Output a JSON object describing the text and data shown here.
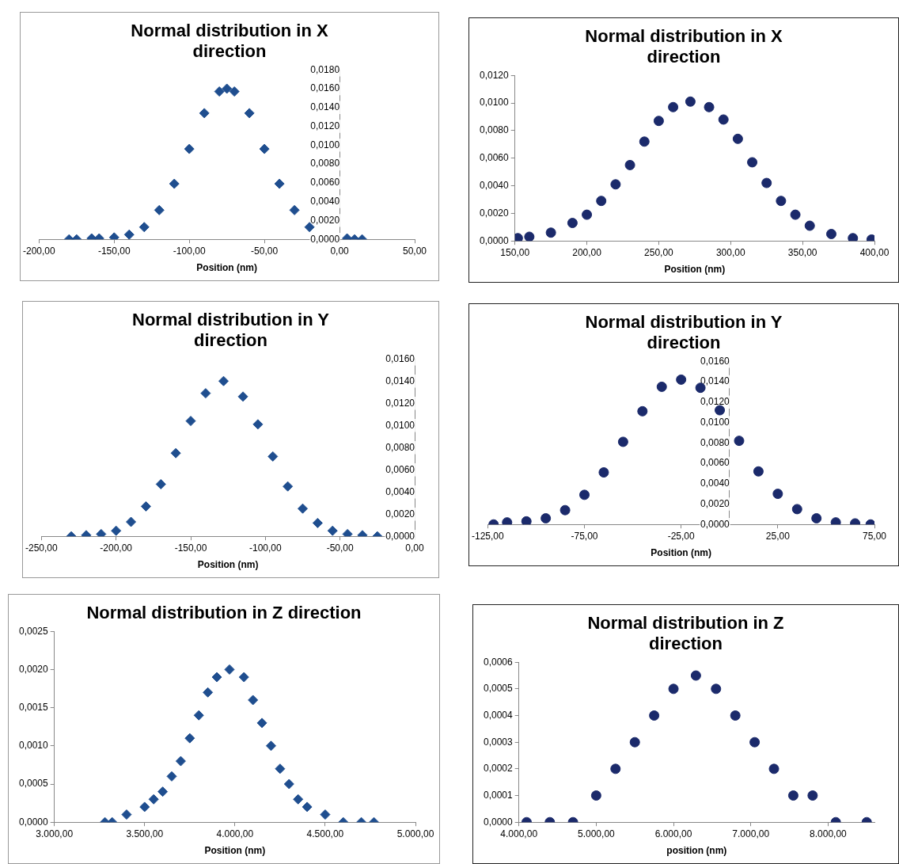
{
  "chart_data": [
    {
      "type": "scatter",
      "title": "Normal distribution in  X direction",
      "xlabel": "Position (nm)",
      "color": "#1f4e8f",
      "marker": "diamond",
      "x": [
        -180,
        -175,
        -165,
        -160,
        -150,
        -140,
        -130,
        -120,
        -110,
        -100,
        -90,
        -80,
        -75,
        -70,
        -60,
        -50,
        -40,
        -30,
        -20,
        5,
        10,
        15
      ],
      "values": [
        0.0,
        0.0,
        0.0001,
        0.0001,
        0.0002,
        0.0005,
        0.0013,
        0.0031,
        0.0059,
        0.0096,
        0.0134,
        0.0157,
        0.016,
        0.0157,
        0.0134,
        0.0096,
        0.0059,
        0.0031,
        0.0013,
        0.0001,
        0.0,
        0.0
      ],
      "xlim": [
        -200,
        50
      ],
      "xticks": [
        {
          "value": -200,
          "label": "-200,00"
        },
        {
          "value": -150,
          "label": "-150,00"
        },
        {
          "value": -100,
          "label": "-100,00"
        },
        {
          "value": -50,
          "label": "-50,00"
        },
        {
          "value": 0,
          "label": "0,00"
        },
        {
          "value": 50,
          "label": "50,00"
        }
      ],
      "ylim": [
        0,
        0.018
      ],
      "yticks": [
        {
          "value": 0,
          "label": "0,0000"
        },
        {
          "value": 0.002,
          "label": "0,0020"
        },
        {
          "value": 0.004,
          "label": "0,0040"
        },
        {
          "value": 0.006,
          "label": "0,0060"
        },
        {
          "value": 0.008,
          "label": "0,0080"
        },
        {
          "value": 0.01,
          "label": "0,0100"
        },
        {
          "value": 0.012,
          "label": "0,0120"
        },
        {
          "value": 0.014,
          "label": "0,0140"
        },
        {
          "value": 0.016,
          "label": "0,0160"
        },
        {
          "value": 0.018,
          "label": "0,0180"
        }
      ]
    },
    {
      "type": "scatter",
      "title": "Normal distribution in X direction",
      "xlabel": "Position (nm)",
      "color": "#1b2a6b",
      "marker": "circle",
      "x": [
        152,
        160,
        175,
        190,
        200,
        210,
        220,
        230,
        240,
        250,
        260,
        272,
        285,
        295,
        305,
        315,
        325,
        335,
        345,
        355,
        370,
        385,
        398
      ],
      "values": [
        0.0002,
        0.0003,
        0.0006,
        0.0013,
        0.0019,
        0.0029,
        0.0041,
        0.0055,
        0.0072,
        0.0087,
        0.0097,
        0.0101,
        0.0097,
        0.0088,
        0.0074,
        0.0057,
        0.0042,
        0.0029,
        0.0019,
        0.0011,
        0.0005,
        0.0002,
        0.0001
      ],
      "xlim": [
        150,
        400
      ],
      "xticks": [
        {
          "value": 150,
          "label": "150,00"
        },
        {
          "value": 200,
          "label": "200,00"
        },
        {
          "value": 250,
          "label": "250,00"
        },
        {
          "value": 300,
          "label": "300,00"
        },
        {
          "value": 350,
          "label": "350,00"
        },
        {
          "value": 400,
          "label": "400,00"
        }
      ],
      "ylim": [
        0,
        0.012
      ],
      "yticks": [
        {
          "value": 0,
          "label": "0,0000"
        },
        {
          "value": 0.002,
          "label": "0,0020"
        },
        {
          "value": 0.004,
          "label": "0,0040"
        },
        {
          "value": 0.006,
          "label": "0,0060"
        },
        {
          "value": 0.008,
          "label": "0,0080"
        },
        {
          "value": 0.01,
          "label": "0,0100"
        },
        {
          "value": 0.012,
          "label": "0,0120"
        }
      ]
    },
    {
      "type": "scatter",
      "title": "Normal distribution in  Y direction",
      "xlabel": "Position (nm)",
      "color": "#1f4e8f",
      "marker": "diamond",
      "x": [
        -230,
        -220,
        -210,
        -200,
        -190,
        -180,
        -170,
        -160,
        -150,
        -140,
        -128,
        -115,
        -105,
        -95,
        -85,
        -75,
        -65,
        -55,
        -45,
        -35,
        -25
      ],
      "values": [
        0.0,
        0.0001,
        0.0002,
        0.0005,
        0.0013,
        0.0027,
        0.0047,
        0.0075,
        0.0104,
        0.0129,
        0.014,
        0.0126,
        0.0101,
        0.0072,
        0.0045,
        0.0025,
        0.0012,
        0.0005,
        0.0002,
        0.0001,
        0.0
      ],
      "xlim": [
        -250,
        0
      ],
      "xticks": [
        {
          "value": -250,
          "label": "-250,00"
        },
        {
          "value": -200,
          "label": "-200,00"
        },
        {
          "value": -150,
          "label": "-150,00"
        },
        {
          "value": -100,
          "label": "-100,00"
        },
        {
          "value": -50,
          "label": "-50,00"
        },
        {
          "value": 0,
          "label": "0,00"
        }
      ],
      "ylim": [
        0,
        0.016
      ],
      "yticks": [
        {
          "value": 0,
          "label": "0,0000"
        },
        {
          "value": 0.002,
          "label": "0,0020"
        },
        {
          "value": 0.004,
          "label": "0,0040"
        },
        {
          "value": 0.006,
          "label": "0,0060"
        },
        {
          "value": 0.008,
          "label": "0,0080"
        },
        {
          "value": 0.01,
          "label": "0,0100"
        },
        {
          "value": 0.012,
          "label": "0,0120"
        },
        {
          "value": 0.014,
          "label": "0,0140"
        },
        {
          "value": 0.016,
          "label": "0,0160"
        }
      ]
    },
    {
      "type": "scatter",
      "title": "Normal distribution in Y direction",
      "xlabel": "Position (nm)",
      "color": "#1b2a6b",
      "marker": "circle",
      "x": [
        -122,
        -115,
        -105,
        -95,
        -85,
        -75,
        -65,
        -55,
        -45,
        -35,
        -25,
        -15,
        -5,
        5,
        15,
        25,
        35,
        45,
        55,
        65,
        73
      ],
      "values": [
        0.0,
        0.0002,
        0.0003,
        0.0006,
        0.0014,
        0.0029,
        0.0051,
        0.0081,
        0.0111,
        0.0135,
        0.0142,
        0.0134,
        0.0112,
        0.0082,
        0.0052,
        0.003,
        0.0015,
        0.0006,
        0.0002,
        0.0001,
        0.0
      ],
      "xlim": [
        -125,
        75
      ],
      "xticks": [
        {
          "value": -125,
          "label": "-125,00"
        },
        {
          "value": -75,
          "label": "-75,00"
        },
        {
          "value": -25,
          "label": "-25,00"
        },
        {
          "value": 25,
          "label": "25,00"
        },
        {
          "value": 75,
          "label": "75,00"
        }
      ],
      "ylim": [
        0,
        0.016
      ],
      "yticks": [
        {
          "value": 0,
          "label": "0,0000"
        },
        {
          "value": 0.002,
          "label": "0,0020"
        },
        {
          "value": 0.004,
          "label": "0,0040"
        },
        {
          "value": 0.006,
          "label": "0,0060"
        },
        {
          "value": 0.008,
          "label": "0,0080"
        },
        {
          "value": 0.01,
          "label": "0,0100"
        },
        {
          "value": 0.012,
          "label": "0,0120"
        },
        {
          "value": 0.014,
          "label": "0,0140"
        },
        {
          "value": 0.016,
          "label": "0,0160"
        }
      ]
    },
    {
      "type": "scatter",
      "title": "Normal distribution in  Z direction",
      "xlabel": "Position (nm)",
      "color": "#1f4e8f",
      "marker": "diamond",
      "x": [
        3280,
        3320,
        3400,
        3500,
        3550,
        3600,
        3650,
        3700,
        3750,
        3800,
        3850,
        3900,
        3970,
        4050,
        4100,
        4150,
        4200,
        4250,
        4300,
        4350,
        4400,
        4500,
        4600,
        4700,
        4770
      ],
      "values": [
        0.0,
        0.0,
        0.0001,
        0.0002,
        0.0003,
        0.0004,
        0.0006,
        0.0008,
        0.0011,
        0.0014,
        0.0017,
        0.0019,
        0.002,
        0.0019,
        0.0016,
        0.0013,
        0.001,
        0.0007,
        0.0005,
        0.0003,
        0.0002,
        0.0001,
        0.0,
        0.0,
        0.0
      ],
      "xlim": [
        3000,
        5000
      ],
      "xticks": [
        {
          "value": 3000,
          "label": "3.000,00"
        },
        {
          "value": 3500,
          "label": "3.500,00"
        },
        {
          "value": 4000,
          "label": "4.000,00"
        },
        {
          "value": 4500,
          "label": "4.500,00"
        },
        {
          "value": 5000,
          "label": "5.000,00"
        }
      ],
      "ylim": [
        0,
        0.0025
      ],
      "yticks": [
        {
          "value": 0,
          "label": "0,0000"
        },
        {
          "value": 0.0005,
          "label": "0,0005"
        },
        {
          "value": 0.001,
          "label": "0,0010"
        },
        {
          "value": 0.0015,
          "label": "0,0015"
        },
        {
          "value": 0.002,
          "label": "0,0020"
        },
        {
          "value": 0.0025,
          "label": "0,0025"
        }
      ]
    },
    {
      "type": "scatter",
      "title": "Normal distribution in Z direction",
      "xlabel": "position (nm)",
      "color": "#1b2a6b",
      "marker": "circle",
      "x": [
        4100,
        4400,
        4700,
        5000,
        5250,
        5500,
        5750,
        6000,
        6290,
        6550,
        6800,
        7050,
        7300,
        7550,
        7800,
        8100,
        8500
      ],
      "values": [
        0.0,
        0.0,
        0.0,
        0.0001,
        0.0002,
        0.0003,
        0.0004,
        0.0005,
        0.00055,
        0.0005,
        0.0004,
        0.0003,
        0.0002,
        0.0001,
        0.0001,
        0.0,
        0.0
      ],
      "xlim": [
        4000,
        8600
      ],
      "xticks": [
        {
          "value": 4000,
          "label": "4.000,00"
        },
        {
          "value": 5000,
          "label": "5.000,00"
        },
        {
          "value": 6000,
          "label": "6.000,00"
        },
        {
          "value": 7000,
          "label": "7.000,00"
        },
        {
          "value": 8000,
          "label": "8.000,00"
        }
      ],
      "ylim": [
        0,
        0.0006
      ],
      "yticks": [
        {
          "value": 0,
          "label": "0,0000"
        },
        {
          "value": 0.0001,
          "label": "0,0001"
        },
        {
          "value": 0.0002,
          "label": "0,0002"
        },
        {
          "value": 0.0003,
          "label": "0,0003"
        },
        {
          "value": 0.0004,
          "label": "0,0004"
        },
        {
          "value": 0.0005,
          "label": "0,0005"
        },
        {
          "value": 0.0006,
          "label": "0,0006"
        }
      ]
    }
  ]
}
